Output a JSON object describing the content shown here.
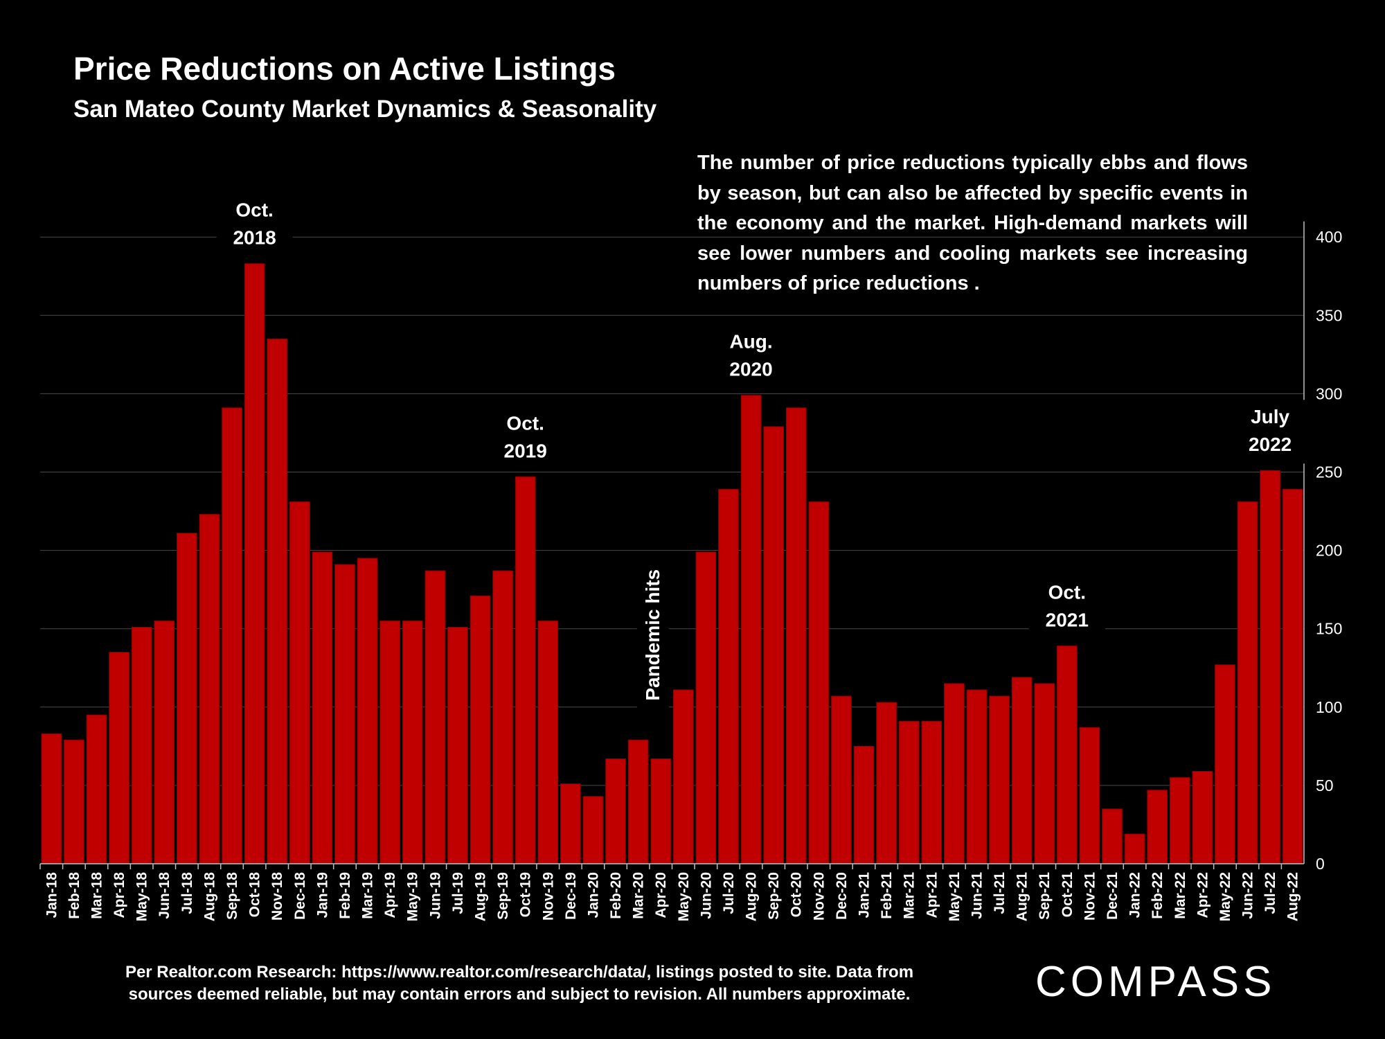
{
  "chart_data": {
    "type": "bar",
    "title": "Price Reductions on Active Listings",
    "subtitle": "San Mateo County Market Dynamics & Seasonality",
    "categories": [
      "Jan-18",
      "Feb-18",
      "Mar-18",
      "Apr-18",
      "May-18",
      "Jun-18",
      "Jul-18",
      "Aug-18",
      "Sep-18",
      "Oct-18",
      "Nov-18",
      "Dec-18",
      "Jan-19",
      "Feb-19",
      "Mar-19",
      "Apr-19",
      "May-19",
      "Jun-19",
      "Jul-19",
      "Aug-19",
      "Sep-19",
      "Oct-19",
      "Nov-19",
      "Dec-19",
      "Jan-20",
      "Feb-20",
      "Mar-20",
      "Apr-20",
      "May-20",
      "Jun-20",
      "Jul-20",
      "Aug-20",
      "Sep-20",
      "Oct-20",
      "Nov-20",
      "Dec-20",
      "Jan-21",
      "Feb-21",
      "Mar-21",
      "Apr-21",
      "May-21",
      "Jun-21",
      "Jul-21",
      "Aug-21",
      "Sep-21",
      "Oct-21",
      "Nov-21",
      "Dec-21",
      "Jan-22",
      "Feb-22",
      "Mar-22",
      "Apr-22",
      "May-22",
      "Jun-22",
      "Jul-22",
      "Aug-22"
    ],
    "values": [
      83,
      79,
      95,
      135,
      151,
      155,
      211,
      223,
      291,
      383,
      335,
      231,
      199,
      191,
      195,
      155,
      155,
      187,
      151,
      171,
      187,
      247,
      155,
      51,
      43,
      67,
      79,
      67,
      111,
      199,
      239,
      299,
      279,
      291,
      231,
      107,
      75,
      103,
      91,
      91,
      115,
      111,
      107,
      119,
      115,
      139,
      87,
      35,
      19,
      47,
      55,
      59,
      127,
      231,
      251,
      239
    ],
    "ylim": [
      0,
      430
    ],
    "yticks": [
      0,
      50,
      100,
      150,
      200,
      250,
      300,
      350,
      400
    ],
    "grid": true,
    "color": "#c00000",
    "annotations": [
      {
        "category": "Oct-18",
        "line1": "Oct.",
        "line2": "2018"
      },
      {
        "category": "Oct-19",
        "line1": "Oct.",
        "line2": "2019"
      },
      {
        "category": "Aug-20",
        "line1": "Aug.",
        "line2": "2020"
      },
      {
        "category": "Oct-21",
        "line1": "Oct.",
        "line2": "2021"
      },
      {
        "category": "Jul-22",
        "line1": "July",
        "line2": "2022"
      }
    ],
    "vertical_annotation": {
      "category": "Mar-20",
      "text": "Pandemic hits"
    }
  },
  "note": "The number of price reductions typically ebbs and flows by season, but can also be affected by specific events in the economy and the market. High-demand markets will see lower numbers and cooling markets see increasing numbers of price reductions .",
  "footnote_line1": "Per Realtor.com Research:  https://www.realtor.com/research/data/, listings posted to site. Data from",
  "footnote_line2": "sources deemed reliable, but may contain errors and subject to revision. All numbers approximate.",
  "logo_text": "COMPASS"
}
